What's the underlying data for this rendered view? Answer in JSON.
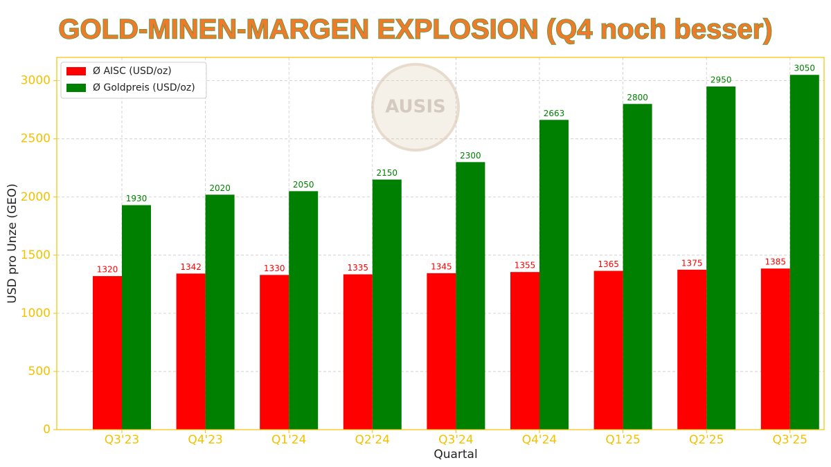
{
  "chart_data": {
    "type": "grouped-bar",
    "title": "GOLD-MINEN-MARGEN EXPLOSION (Q4 noch besser)",
    "xlabel": "Quartal",
    "ylabel": "USD pro Unze (GEO)",
    "watermark": "AUSIS",
    "categories": [
      "Q3'23",
      "Q4'23",
      "Q1'24",
      "Q2'24",
      "Q3'24",
      "Q4'24",
      "Q1'25",
      "Q2'25",
      "Q3'25"
    ],
    "series": [
      {
        "name": "Ø AISC (USD/oz)",
        "color": "#ff0000",
        "values": [
          1320,
          1342,
          1330,
          1335,
          1345,
          1355,
          1365,
          1375,
          1385
        ]
      },
      {
        "name": "Ø Goldpreis (USD/oz)",
        "color": "#008000",
        "values": [
          1930,
          2020,
          2050,
          2150,
          2300,
          2663,
          2800,
          2950,
          3050
        ]
      }
    ],
    "ylim": [
      0,
      3200
    ],
    "yticks": [
      0,
      500,
      1000,
      1500,
      2000,
      2500,
      3000
    ],
    "grid": true,
    "legend": "upper-left",
    "axis_color": "#f2c200"
  }
}
